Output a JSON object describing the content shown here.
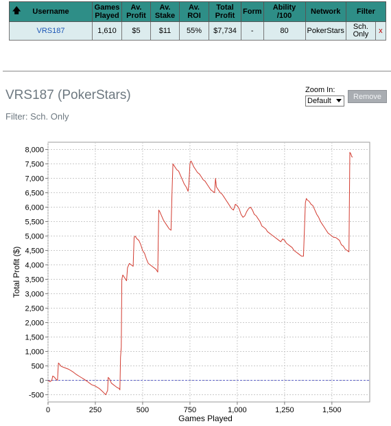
{
  "table": {
    "sort_arrow": "🡅",
    "headers": [
      "Username",
      "Games Played",
      "Av. Profit",
      "Av. Stake",
      "Av. ROI",
      "Total Profit",
      "Form",
      "Ability /100",
      "Network",
      "Filter"
    ],
    "row": {
      "username": "VRS187",
      "games_played": "1,610",
      "av_profit": "$5",
      "av_stake": "$11",
      "av_roi": "55%",
      "total_profit": "$7,734",
      "form": "-",
      "ability": "80",
      "network": "PokerStars",
      "filter": "Sch. Only",
      "remove": "x"
    }
  },
  "page": {
    "title": "VRS187 (PokerStars)",
    "filter_line": "Filter: Sch. Only"
  },
  "zoom": {
    "label": "Zoom In:",
    "selected": "Default"
  },
  "remove_button": "Remove",
  "colors": {
    "header_bg": "#2e8e87",
    "row_bg": "#dcecee",
    "line": "#d23a2f",
    "zero_line": "#5b5fc4",
    "grid": "#c9c9c9"
  },
  "chart_data": {
    "type": "line",
    "xlabel": "Games Played",
    "ylabel": "Total Profit ($)",
    "xlim": [
      0,
      1700
    ],
    "ylim": [
      -750,
      8250
    ],
    "xticks": [
      0,
      250,
      500,
      750,
      1000,
      1250,
      1500
    ],
    "xtick_labels": [
      "0",
      "250",
      "500",
      "750",
      "1,000",
      "1,250",
      "1,500"
    ],
    "yticks": [
      -500,
      0,
      500,
      1000,
      1500,
      2000,
      2500,
      3000,
      3500,
      4000,
      4500,
      5000,
      5500,
      6000,
      6500,
      7000,
      7500,
      8000
    ],
    "ytick_labels": [
      "-500",
      "0",
      "500",
      "1,000",
      "1,500",
      "2,000",
      "2,500",
      "3,000",
      "3,500",
      "4,000",
      "4,500",
      "5,000",
      "5,500",
      "6,000",
      "6,500",
      "7,000",
      "7,500",
      "8,000"
    ],
    "grid": true,
    "baseline": 0,
    "series": [
      {
        "x": [
          0,
          10,
          20,
          25,
          35,
          40,
          50,
          55,
          58,
          70,
          90,
          110,
          130,
          150,
          170,
          190,
          210,
          230,
          250,
          270,
          290,
          305,
          315,
          318,
          325,
          335,
          345,
          355,
          365,
          375,
          380,
          383,
          387,
          390,
          395,
          400,
          410,
          415,
          420,
          430,
          440,
          450,
          455,
          460,
          470,
          480,
          490,
          500,
          510,
          520,
          530,
          540,
          550,
          560,
          570,
          580,
          585,
          590,
          600,
          610,
          620,
          630,
          640,
          650,
          655,
          660,
          665,
          670,
          680,
          690,
          700,
          710,
          720,
          730,
          740,
          745,
          750,
          755,
          760,
          770,
          780,
          790,
          800,
          810,
          820,
          830,
          840,
          850,
          860,
          870,
          880,
          885,
          890,
          900,
          910,
          920,
          930,
          940,
          950,
          960,
          970,
          980,
          990,
          1000,
          1010,
          1020,
          1030,
          1040,
          1050,
          1060,
          1070,
          1080,
          1090,
          1100,
          1110,
          1120,
          1130,
          1140,
          1150,
          1160,
          1170,
          1180,
          1190,
          1200,
          1210,
          1220,
          1230,
          1240,
          1250,
          1260,
          1270,
          1280,
          1290,
          1300,
          1310,
          1320,
          1330,
          1340,
          1350,
          1360,
          1365,
          1370,
          1380,
          1390,
          1400,
          1410,
          1420,
          1430,
          1440,
          1450,
          1460,
          1470,
          1480,
          1490,
          1500,
          1510,
          1520,
          1530,
          1540,
          1550,
          1560,
          1570,
          1580,
          1590,
          1595,
          1600,
          1605,
          1610
        ],
        "y": [
          0,
          -50,
          0,
          150,
          100,
          50,
          0,
          600,
          580,
          480,
          430,
          380,
          300,
          200,
          120,
          40,
          -50,
          -150,
          -200,
          -280,
          -400,
          -500,
          -350,
          100,
          50,
          -100,
          -150,
          -200,
          -250,
          -280,
          -330,
          800,
          1150,
          3500,
          3650,
          3600,
          3500,
          3450,
          3900,
          4050,
          4000,
          3950,
          4950,
          5000,
          4900,
          4850,
          4700,
          4500,
          4400,
          4200,
          4050,
          4000,
          3950,
          3900,
          3850,
          3750,
          5900,
          5850,
          5700,
          5550,
          5450,
          5350,
          5250,
          5200,
          6450,
          7500,
          7450,
          7400,
          7300,
          7250,
          7100,
          6950,
          6800,
          6700,
          6550,
          6850,
          7500,
          7600,
          7550,
          7400,
          7300,
          7200,
          7150,
          7050,
          6950,
          6900,
          6800,
          6700,
          6600,
          6550,
          6500,
          7000,
          6700,
          6600,
          6500,
          6450,
          6350,
          6250,
          6150,
          6050,
          5950,
          5900,
          6100,
          6050,
          5950,
          5750,
          5650,
          5700,
          5850,
          5950,
          6000,
          5900,
          5750,
          5700,
          5600,
          5500,
          5350,
          5300,
          5250,
          5150,
          5100,
          5050,
          5000,
          4950,
          4900,
          4850,
          4800,
          4900,
          4850,
          4750,
          4700,
          4650,
          4600,
          4500,
          4450,
          4400,
          4350,
          4300,
          4300,
          6150,
          6300,
          6250,
          6200,
          6100,
          6050,
          5900,
          5750,
          5650,
          5500,
          5400,
          5300,
          5200,
          5100,
          5050,
          5000,
          4950,
          4950,
          4900,
          4850,
          4700,
          4650,
          4550,
          4500,
          4450,
          7900,
          7850,
          7750,
          7734
        ]
      }
    ]
  }
}
